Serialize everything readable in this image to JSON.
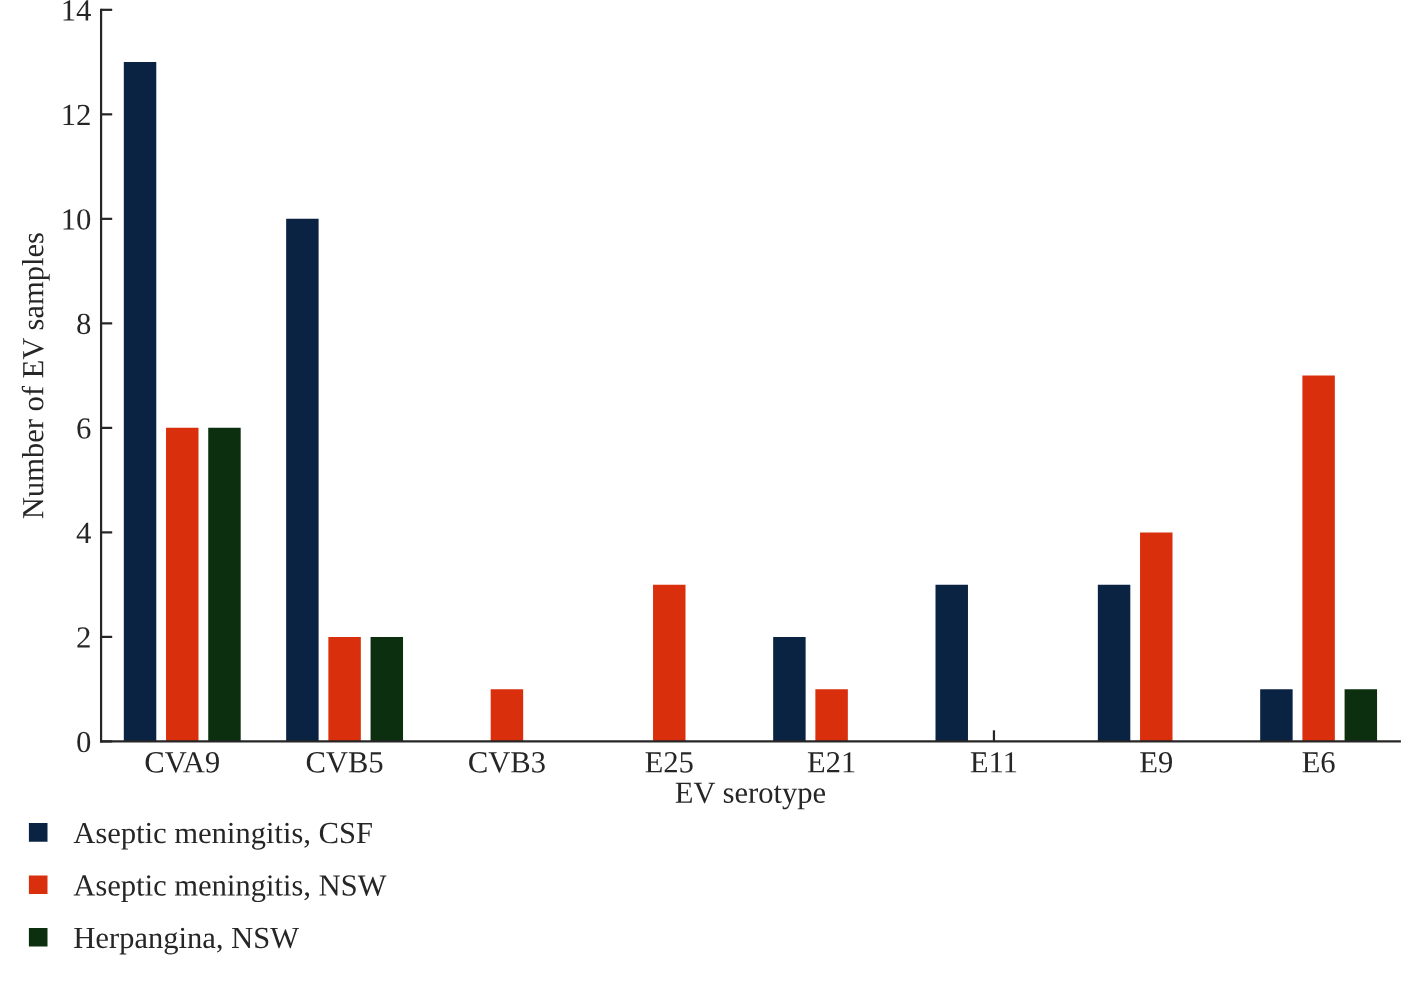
{
  "chart_data": {
    "type": "bar",
    "xlabel": "EV serotype",
    "ylabel": "Number of EV samples",
    "categories": [
      "CVA9",
      "CVB5",
      "CVB3",
      "E25",
      "E21",
      "E11",
      "E9",
      "E6"
    ],
    "series": [
      {
        "name": "Aseptic meningitis, CSF",
        "color": "#0b2343",
        "values": [
          13,
          10,
          0,
          0,
          2,
          3,
          3,
          1
        ]
      },
      {
        "name": "Aseptic meningitis, NSW",
        "color": "#d92f0c",
        "values": [
          6,
          2,
          1,
          3,
          1,
          0,
          4,
          7
        ]
      },
      {
        "name": "Herpangina, NSW",
        "color": "#0b2f0f",
        "values": [
          6,
          2,
          0,
          0,
          0,
          0,
          0,
          1
        ]
      }
    ],
    "ylim": [
      0,
      14
    ],
    "yticks": [
      0,
      2,
      4,
      6,
      8,
      10,
      12,
      14
    ],
    "grid": false,
    "legend": "bottom left"
  }
}
